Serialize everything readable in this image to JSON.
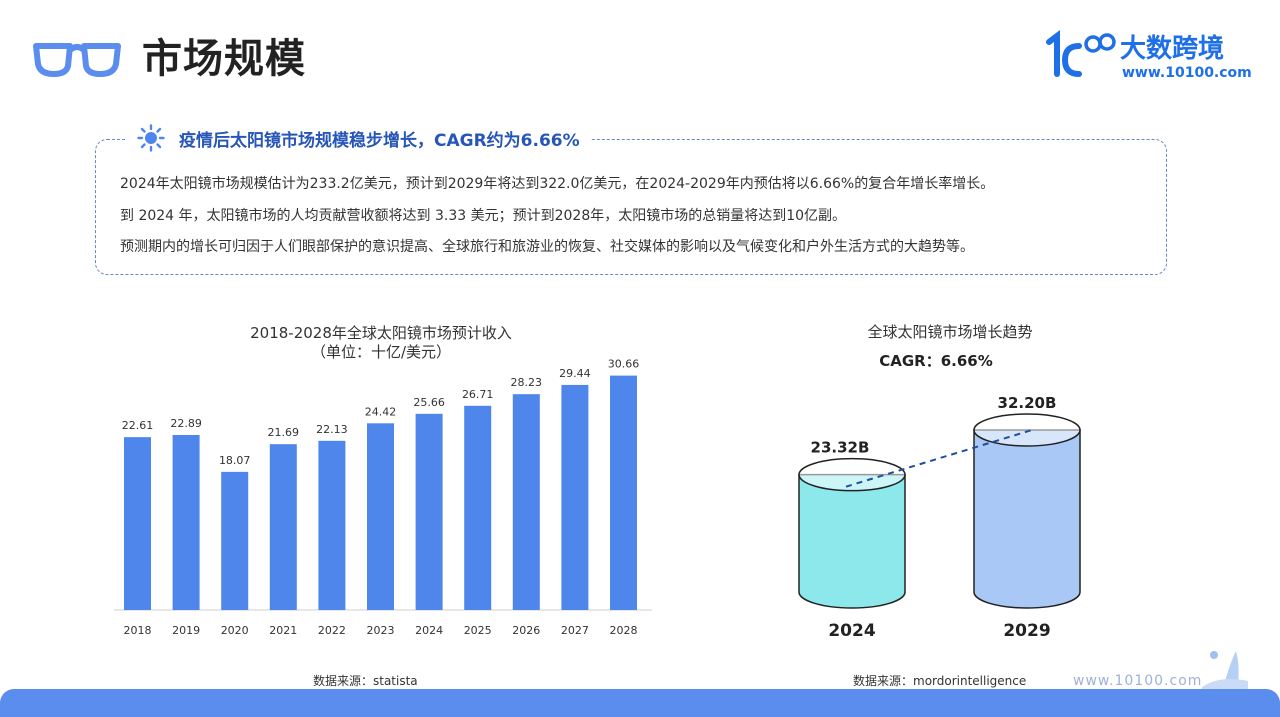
{
  "header": {
    "title": "市场规模",
    "logo_name": "大数跨境",
    "logo_url": "www.10100.com"
  },
  "info": {
    "headline": "疫情后太阳镜市场规模稳步增长，CAGR约为6.66%",
    "lines": [
      "2024年太阳镜市场规模估计为233.2亿美元，预计到2029年将达到322.0亿美元，在2024-2029年内预估将以6.66%的复合年增长率增长。",
      "到 2024 年，太阳镜市场的人均贡献营收额将达到 3.33 美元；预计到2028年，太阳镜市场的总销量将达到10亿副。",
      "预测期内的增长可归因于人们眼部保护的意识提高、全球旅行和旅游业的恢复、社交媒体的影响以及气候变化和户外生活方式的大趋势等。"
    ]
  },
  "sources": {
    "left": "数据来源：statista",
    "right": "数据来源：mordorintelligence"
  },
  "footer": {
    "url": "www.10100.com"
  },
  "colors": {
    "bar": "#4f86ec",
    "accent": "#2756b8",
    "cyl2024": "#8de8ec",
    "cyl2029": "#a9c8f5"
  },
  "chart_data": [
    {
      "type": "bar",
      "title": "2018-2028年全球太阳镜市场预计收入",
      "subtitle": "（单位：十亿/美元）",
      "categories": [
        "2018",
        "2019",
        "2020",
        "2021",
        "2022",
        "2023",
        "2024",
        "2025",
        "2026",
        "2027",
        "2028"
      ],
      "values": [
        22.61,
        22.89,
        18.07,
        21.69,
        22.13,
        24.42,
        25.66,
        26.71,
        28.23,
        29.44,
        30.66
      ],
      "value_labels": [
        "22.61",
        "22.89",
        "18.07",
        "21.69",
        "22.13",
        "24.42",
        "25.66",
        "26.71",
        "28.23",
        "29.44",
        "30.66"
      ],
      "ylim": [
        0,
        31
      ]
    },
    {
      "type": "bar",
      "title": "全球太阳镜市场增长趋势",
      "subtitle": "CAGR：6.66%",
      "categories": [
        "2024",
        "2029"
      ],
      "values": [
        23.32,
        32.2
      ],
      "value_labels": [
        "23.32B",
        "32.20B"
      ]
    }
  ]
}
